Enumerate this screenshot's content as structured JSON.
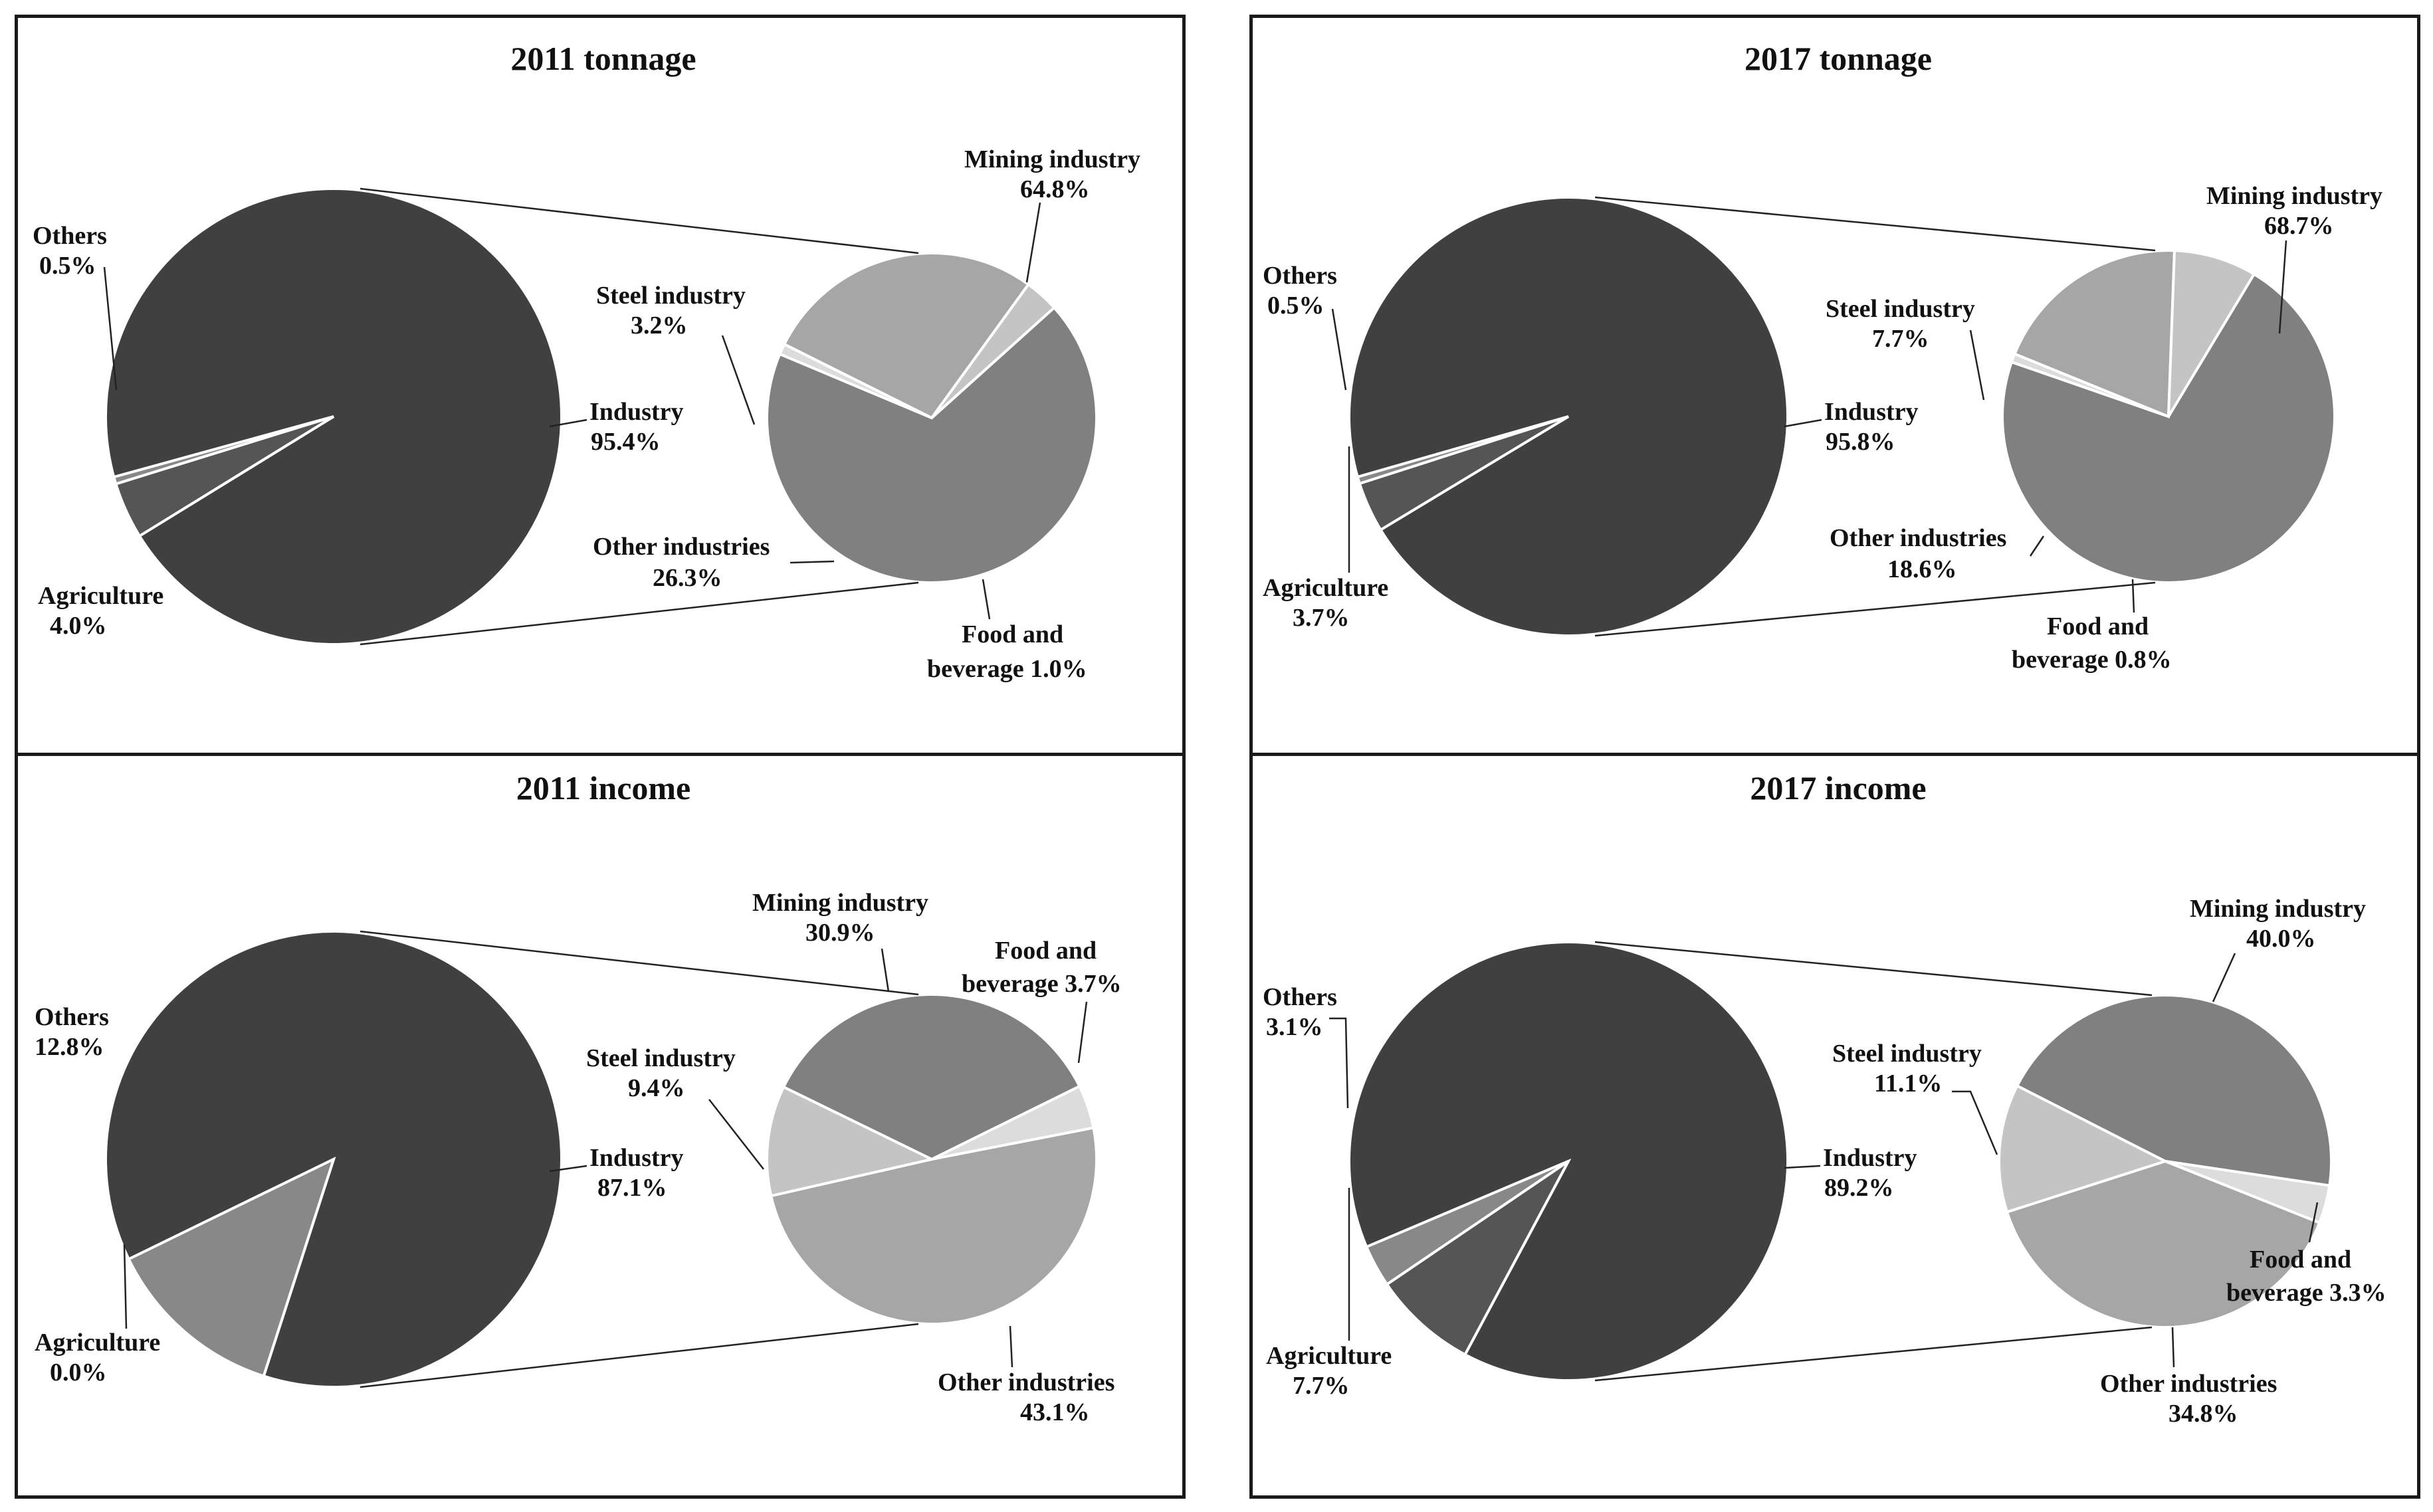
{
  "chart_data": [
    {
      "type": "pie",
      "title": "2011 tonnage",
      "main_slices": [
        {
          "label": "Industry",
          "value": 95.4,
          "value_text": "95.4%",
          "color": "#404040"
        },
        {
          "label": "Agriculture",
          "value": 4.0,
          "value_text": "4.0%",
          "color": "#555555"
        },
        {
          "label": "Others",
          "value": 0.5,
          "value_text": "0.5%",
          "color": "#888888"
        }
      ],
      "breakdown_of": "Industry",
      "sub_slices": [
        {
          "label": "Mining industry",
          "value": 64.8,
          "value_text": "64.8%",
          "color": "#808080"
        },
        {
          "label": "Food and beverage",
          "value": 1.0,
          "value_text": "1.0%",
          "color": "#dcdcdc"
        },
        {
          "label": "Other industries",
          "value": 26.3,
          "value_text": "26.3%",
          "color": "#a6a6a6"
        },
        {
          "label": "Steel industry",
          "value": 3.2,
          "value_text": "3.2%",
          "color": "#c4c4c4"
        }
      ]
    },
    {
      "type": "pie",
      "title": "2017 tonnage",
      "main_slices": [
        {
          "label": "Industry",
          "value": 95.8,
          "value_text": "95.8%",
          "color": "#404040"
        },
        {
          "label": "Agriculture",
          "value": 3.7,
          "value_text": "3.7%",
          "color": "#555555"
        },
        {
          "label": "Others",
          "value": 0.5,
          "value_text": "0.5%",
          "color": "#888888"
        }
      ],
      "breakdown_of": "Industry",
      "sub_slices": [
        {
          "label": "Mining industry",
          "value": 68.7,
          "value_text": "68.7%",
          "color": "#808080"
        },
        {
          "label": "Food and beverage",
          "value": 0.8,
          "value_text": "0.8%",
          "color": "#dcdcdc"
        },
        {
          "label": "Other industries",
          "value": 18.6,
          "value_text": "18.6%",
          "color": "#a6a6a6"
        },
        {
          "label": "Steel industry",
          "value": 7.7,
          "value_text": "7.7%",
          "color": "#c4c4c4"
        }
      ]
    },
    {
      "type": "pie",
      "title": "2011 income",
      "main_slices": [
        {
          "label": "Industry",
          "value": 87.1,
          "value_text": "87.1%",
          "color": "#404040"
        },
        {
          "label": "Agriculture",
          "value": 0.0,
          "value_text": "0.0%",
          "color": "#555555"
        },
        {
          "label": "Others",
          "value": 12.8,
          "value_text": "12.8%",
          "color": "#888888"
        }
      ],
      "breakdown_of": "Industry",
      "sub_slices": [
        {
          "label": "Mining industry",
          "value": 30.9,
          "value_text": "30.9%",
          "color": "#808080"
        },
        {
          "label": "Food and beverage",
          "value": 3.7,
          "value_text": "3.7%",
          "color": "#dcdcdc"
        },
        {
          "label": "Other industries",
          "value": 43.1,
          "value_text": "43.1%",
          "color": "#a6a6a6"
        },
        {
          "label": "Steel industry",
          "value": 9.4,
          "value_text": "9.4%",
          "color": "#c4c4c4"
        }
      ]
    },
    {
      "type": "pie",
      "title": "2017 income",
      "main_slices": [
        {
          "label": "Industry",
          "value": 89.2,
          "value_text": "89.2%",
          "color": "#404040"
        },
        {
          "label": "Agriculture",
          "value": 7.7,
          "value_text": "7.7%",
          "color": "#555555"
        },
        {
          "label": "Others",
          "value": 3.1,
          "value_text": "3.1%",
          "color": "#888888"
        }
      ],
      "breakdown_of": "Industry",
      "sub_slices": [
        {
          "label": "Mining industry",
          "value": 40.0,
          "value_text": "40.0%",
          "color": "#808080"
        },
        {
          "label": "Food and beverage",
          "value": 3.3,
          "value_text": "3.3%",
          "color": "#dcdcdc"
        },
        {
          "label": "Other industries",
          "value": 34.8,
          "value_text": "34.8%",
          "color": "#a6a6a6"
        },
        {
          "label": "Steel industry",
          "value": 11.1,
          "value_text": "11.1%",
          "color": "#c4c4c4"
        }
      ]
    }
  ]
}
